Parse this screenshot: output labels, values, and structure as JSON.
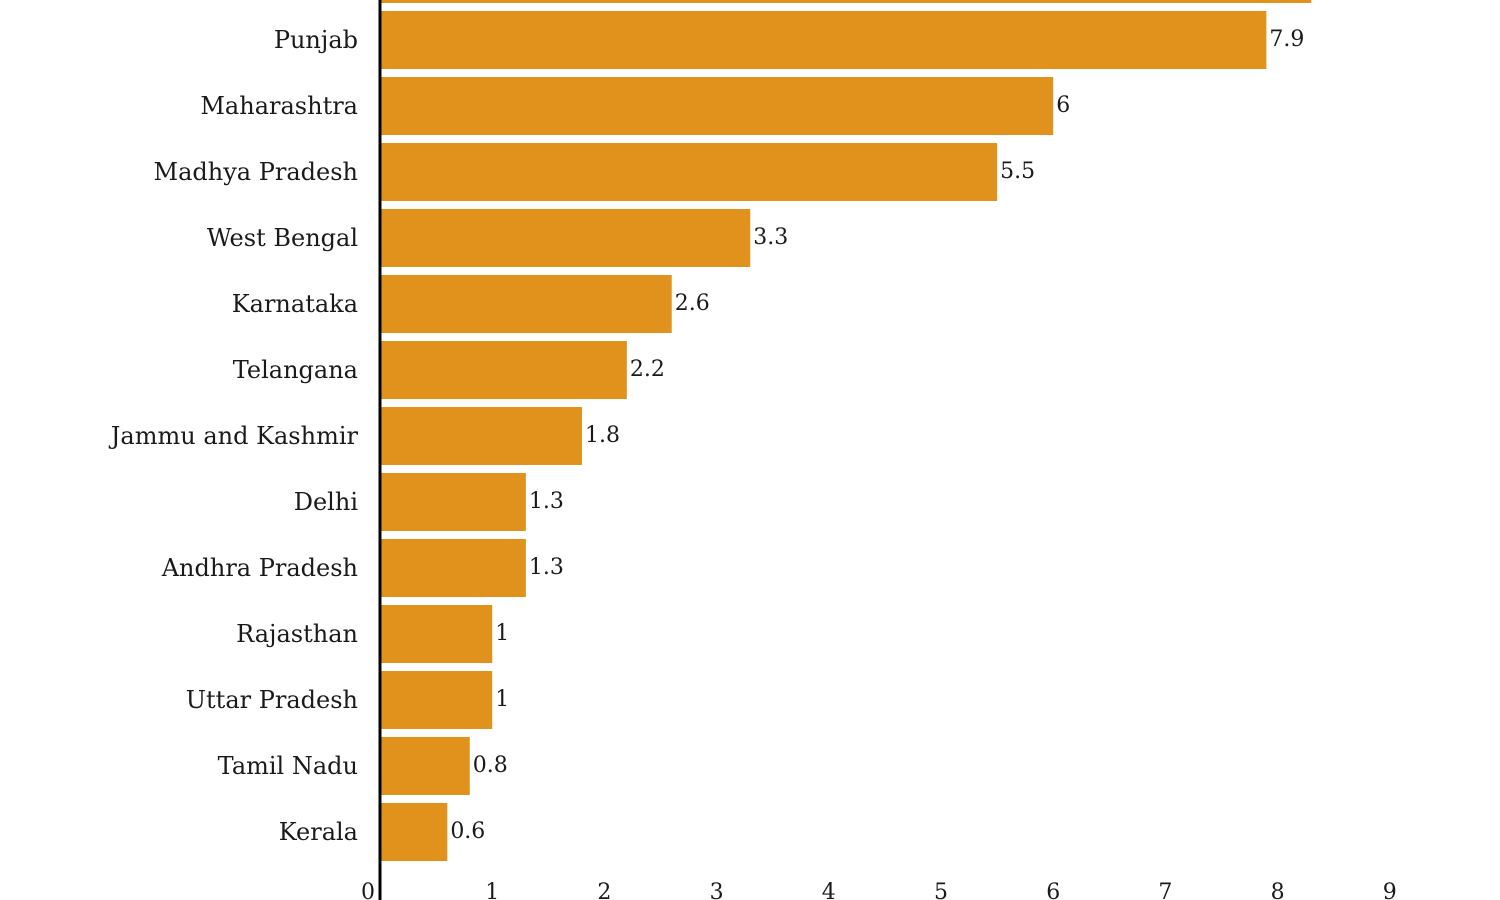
{
  "chart_data": {
    "type": "bar",
    "orientation": "horizontal",
    "categories": [
      "",
      "Punjab",
      "Maharashtra",
      "Madhya Pradesh",
      "West Bengal",
      "Karnataka",
      "Telangana",
      "Jammu and Kashmir",
      "Delhi",
      "Andhra Pradesh",
      "Rajasthan",
      "Uttar Pradesh",
      "Tamil Nadu",
      "Kerala"
    ],
    "values": [
      8.3,
      7.9,
      6,
      5.5,
      3.3,
      2.6,
      2.2,
      1.8,
      1.3,
      1.3,
      1,
      1,
      0.8,
      0.6
    ],
    "value_labels": [
      "",
      "7.9",
      "6",
      "5.5",
      "3.3",
      "2.6",
      "2.2",
      "1.8",
      "1.3",
      "1.3",
      "1",
      "1",
      "0.8",
      "0.6"
    ],
    "x_ticks": [
      "0",
      "1",
      "2",
      "3",
      "4",
      "5",
      "6",
      "7",
      "8",
      "9"
    ],
    "xlim": [
      0,
      9
    ],
    "bar_color": "#E0921C",
    "axis_color": "#000000",
    "grid": false,
    "legend": "none",
    "title": "",
    "xlabel": "",
    "ylabel": ""
  }
}
